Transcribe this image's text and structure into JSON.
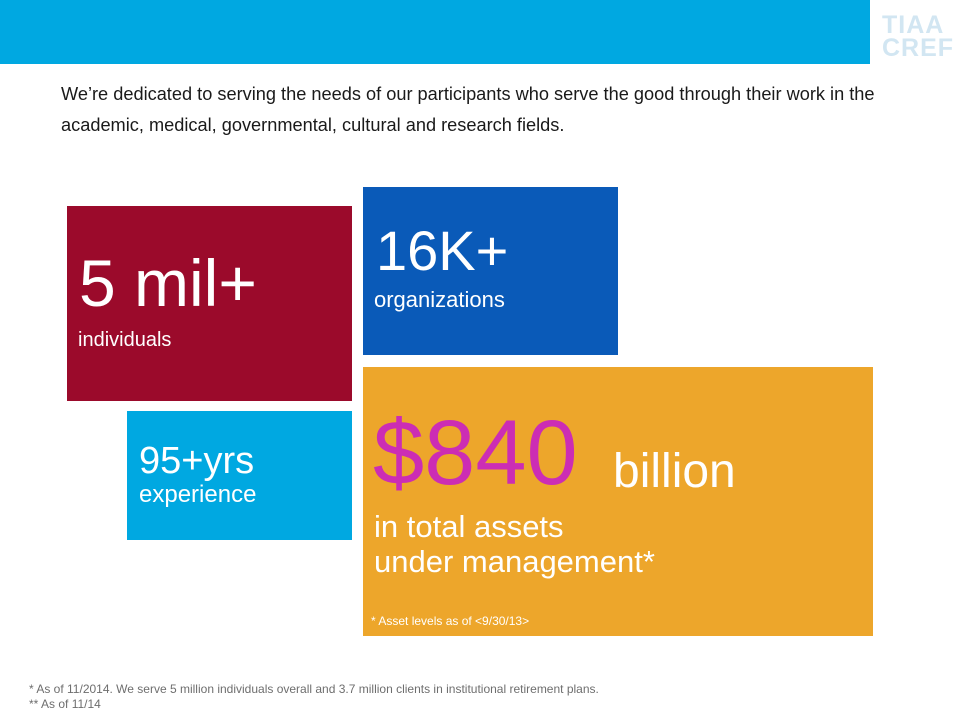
{
  "header": {
    "logo_line1": "TIAA",
    "logo_line2": "CREF"
  },
  "intro": "We’re dedicated to serving the needs of our participants who serve the good through their work in the academic, medical, governmental, cultural and research fields.",
  "stats": {
    "individuals": {
      "value": "5 mil+",
      "label": "individuals",
      "color": "#9b0a2b"
    },
    "organizations": {
      "value": "16K+",
      "label": "organizations",
      "color": "#0a5ab8"
    },
    "experience": {
      "value": "95+yrs",
      "label": "experience",
      "color": "#00a8e1"
    },
    "assets": {
      "value": "$840",
      "unit": "billion",
      "line1": "in total assets",
      "line2": "under management*",
      "note": "* Asset levels as of <9/30/13>",
      "color": "#eda62b",
      "value_color": "#cc2db4"
    }
  },
  "footnotes": {
    "line1": "* As of 11/2014. We serve 5 million individuals overall and 3.7 million clients in institutional retirement plans.",
    "line2": "** As of 11/14"
  }
}
